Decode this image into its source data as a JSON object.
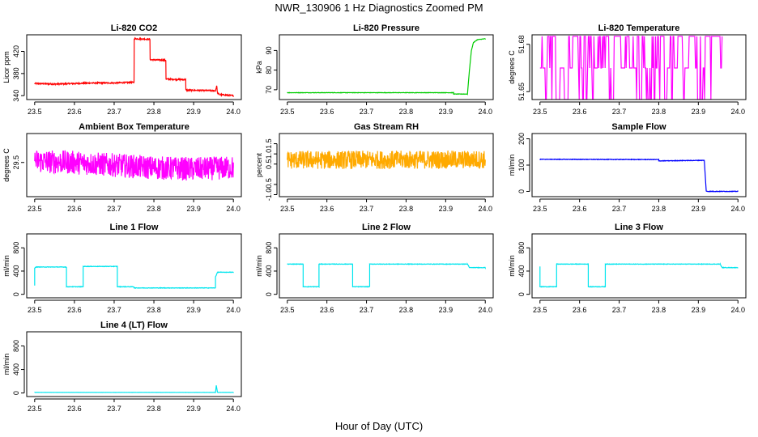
{
  "figure": {
    "title": "NWR_130906  1 Hz Diagnostics Zoomed PM",
    "xlabel": "Hour of Day (UTC)"
  },
  "chart_data": [
    {
      "type": "line",
      "title": "Li-820 CO2",
      "ylabel": "Licor ppm",
      "color": "#ff0000",
      "xlim": [
        23.48,
        24.02
      ],
      "ylim": [
        333,
        450
      ],
      "xticks": [
        23.5,
        23.6,
        23.7,
        23.8,
        23.9,
        24.0
      ],
      "xticklabels": [
        "23.5",
        "23.6",
        "23.7",
        "23.8",
        "23.9",
        "24.0"
      ],
      "yticks": [
        340,
        380,
        420
      ],
      "yticklabels": [
        "340",
        "380",
        "420"
      ],
      "noise": 1.2,
      "series": [
        {
          "x": [
            23.5,
            23.55,
            23.6,
            23.65,
            23.7,
            23.75,
            23.7505,
            23.79,
            23.7905,
            23.83,
            23.8305,
            23.88,
            23.8805,
            23.955,
            23.958,
            23.96,
            23.965,
            24.0
          ],
          "y": [
            362,
            361,
            362,
            363,
            363,
            364,
            443,
            442,
            405,
            404,
            370,
            369,
            350,
            349,
            358,
            345,
            342,
            340
          ]
        }
      ]
    },
    {
      "type": "line",
      "title": "Li-820 Pressure",
      "ylabel": "kPa",
      "color": "#00cc00",
      "xlim": [
        23.48,
        24.02
      ],
      "ylim": [
        65,
        98
      ],
      "xticks": [
        23.5,
        23.6,
        23.7,
        23.8,
        23.9,
        24.0
      ],
      "xticklabels": [
        "23.5",
        "23.6",
        "23.7",
        "23.8",
        "23.9",
        "24.0"
      ],
      "yticks": [
        70,
        80,
        90
      ],
      "yticklabels": [
        "70",
        "80",
        "90"
      ],
      "noise": 0.1,
      "series": [
        {
          "x": [
            23.5,
            23.9,
            23.92,
            23.92,
            23.955,
            23.96,
            23.965,
            23.97,
            23.98,
            24.0
          ],
          "y": [
            68.5,
            68.5,
            68.5,
            67.8,
            67.8,
            80,
            90,
            94,
            95.5,
            96
          ]
        }
      ]
    },
    {
      "type": "line",
      "title": "Li-820 Temperature",
      "ylabel": "degrees C",
      "color": "#ff00ff",
      "xlim": [
        23.48,
        24.02
      ],
      "ylim": [
        51.645,
        51.686
      ],
      "xticks": [
        23.5,
        23.6,
        23.7,
        23.8,
        23.9,
        24.0
      ],
      "xticklabels": [
        "23.5",
        "23.6",
        "23.7",
        "23.8",
        "23.9",
        "24.0"
      ],
      "yticks": [
        51.65,
        51.68
      ],
      "yticklabels": [
        "51.65",
        "51.68"
      ],
      "levels": [
        51.645,
        51.665,
        51.685
      ],
      "series": [
        {
          "x": [
            23.5,
            23.96
          ],
          "y": [
            51.665,
            51.665
          ]
        }
      ]
    },
    {
      "type": "line",
      "title": "Ambient Box Temperature",
      "ylabel": "degrees C",
      "color": "#ff00ff",
      "xlim": [
        23.48,
        24.02
      ],
      "ylim": [
        29.37,
        29.61
      ],
      "xticks": [
        23.5,
        23.6,
        23.7,
        23.8,
        23.9,
        24.0
      ],
      "xticklabels": [
        "23.5",
        "23.6",
        "23.7",
        "23.8",
        "23.9",
        "24.0"
      ],
      "yticks": [
        29.5
      ],
      "yticklabels": [
        "29.5"
      ],
      "noise": 0.045,
      "series": [
        {
          "x": [
            23.5,
            23.6,
            23.7,
            23.8,
            23.9,
            24.0
          ],
          "y": [
            29.505,
            29.5,
            29.49,
            29.48,
            29.475,
            29.48
          ]
        }
      ]
    },
    {
      "type": "line",
      "title": "Gas Stream RH",
      "ylabel": "percent",
      "color": "#ffaa00",
      "xlim": [
        23.48,
        24.02
      ],
      "ylim": [
        -1.1,
        2.0
      ],
      "xticks": [
        23.5,
        23.6,
        23.7,
        23.8,
        23.9,
        24.0
      ],
      "xticklabels": [
        "23.5",
        "23.6",
        "23.7",
        "23.8",
        "23.9",
        "24.0"
      ],
      "yticks": [
        -1.0,
        -0.5,
        0.5,
        1.0,
        1.5
      ],
      "yticklabels": [
        "-1.0",
        "-0.5",
        "0.5",
        "1.0",
        "1.5"
      ],
      "noise": 0.45,
      "series": [
        {
          "x": [
            23.5,
            24.0
          ],
          "y": [
            0.7,
            0.72
          ]
        }
      ]
    },
    {
      "type": "line",
      "title": "Sample Flow",
      "ylabel": "ml/min",
      "color": "#0000ff",
      "xlim": [
        23.48,
        24.02
      ],
      "ylim": [
        -20,
        220
      ],
      "xticks": [
        23.5,
        23.6,
        23.7,
        23.8,
        23.9,
        24.0
      ],
      "xticklabels": [
        "23.5",
        "23.6",
        "23.7",
        "23.8",
        "23.9",
        "24.0"
      ],
      "yticks": [
        0,
        100,
        200
      ],
      "yticklabels": [
        "0",
        "100",
        "200"
      ],
      "noise": 1.0,
      "series": [
        {
          "x": [
            23.5,
            23.8,
            23.8,
            23.91,
            23.915,
            23.92,
            24.0
          ],
          "y": [
            122,
            121,
            116,
            118,
            118,
            0,
            0
          ]
        }
      ]
    },
    {
      "type": "line",
      "title": "Line 1 Flow",
      "ylabel": "ml/min",
      "color": "#00e5ee",
      "xlim": [
        23.48,
        24.02
      ],
      "ylim": [
        -60,
        1040
      ],
      "xticks": [
        23.5,
        23.6,
        23.7,
        23.8,
        23.9,
        24.0
      ],
      "xticklabels": [
        "23.5",
        "23.6",
        "23.7",
        "23.8",
        "23.9",
        "24.0"
      ],
      "yticks": [
        0,
        400,
        800
      ],
      "yticklabels": [
        "0",
        "400",
        "800"
      ],
      "noise": 4,
      "series": [
        {
          "x": [
            23.5,
            23.5,
            23.503,
            23.58,
            23.58,
            23.622,
            23.622,
            23.708,
            23.708,
            23.75,
            23.75,
            23.955,
            23.955,
            23.96,
            24.0
          ],
          "y": [
            150,
            450,
            470,
            470,
            130,
            130,
            480,
            480,
            130,
            130,
            110,
            110,
            300,
            380,
            380
          ]
        }
      ]
    },
    {
      "type": "line",
      "title": "Line 2 Flow",
      "ylabel": "ml/min",
      "color": "#00e5ee",
      "xlim": [
        23.48,
        24.02
      ],
      "ylim": [
        -60,
        1040
      ],
      "xticks": [
        23.5,
        23.6,
        23.7,
        23.8,
        23.9,
        24.0
      ],
      "xticklabels": [
        "23.5",
        "23.6",
        "23.7",
        "23.8",
        "23.9",
        "24.0"
      ],
      "yticks": [
        0,
        400,
        800
      ],
      "yticklabels": [
        "0",
        "400",
        "800"
      ],
      "noise": 4,
      "series": [
        {
          "x": [
            23.5,
            23.54,
            23.54,
            23.58,
            23.58,
            23.665,
            23.665,
            23.708,
            23.708,
            23.955,
            23.96,
            24.0
          ],
          "y": [
            520,
            520,
            130,
            130,
            520,
            520,
            130,
            130,
            520,
            520,
            460,
            460
          ]
        }
      ]
    },
    {
      "type": "line",
      "title": "Line 3 Flow",
      "ylabel": "ml/min",
      "color": "#00e5ee",
      "xlim": [
        23.48,
        24.02
      ],
      "ylim": [
        -60,
        1040
      ],
      "xticks": [
        23.5,
        23.6,
        23.7,
        23.8,
        23.9,
        24.0
      ],
      "xticklabels": [
        "23.5",
        "23.6",
        "23.7",
        "23.8",
        "23.9",
        "24.0"
      ],
      "yticks": [
        0,
        400,
        800
      ],
      "yticklabels": [
        "0",
        "400",
        "800"
      ],
      "noise": 4,
      "series": [
        {
          "x": [
            23.5,
            23.5,
            23.503,
            23.542,
            23.542,
            23.622,
            23.622,
            23.665,
            23.665,
            23.955,
            23.96,
            24.0
          ],
          "y": [
            480,
            130,
            130,
            130,
            520,
            520,
            130,
            130,
            520,
            520,
            460,
            460
          ]
        }
      ]
    },
    {
      "type": "line",
      "title": "Line 4 (LT) Flow",
      "ylabel": "ml/min",
      "color": "#00e5ee",
      "xlim": [
        23.48,
        24.02
      ],
      "ylim": [
        -60,
        1040
      ],
      "xticks": [
        23.5,
        23.6,
        23.7,
        23.8,
        23.9,
        24.0
      ],
      "xticklabels": [
        "23.5",
        "23.6",
        "23.7",
        "23.8",
        "23.9",
        "24.0"
      ],
      "yticks": [
        0,
        400,
        800
      ],
      "yticklabels": [
        "0",
        "400",
        "800"
      ],
      "noise": 1,
      "series": [
        {
          "x": [
            23.5,
            23.955,
            23.957,
            23.96,
            24.0
          ],
          "y": [
            10,
            10,
            130,
            10,
            10
          ]
        }
      ]
    }
  ]
}
